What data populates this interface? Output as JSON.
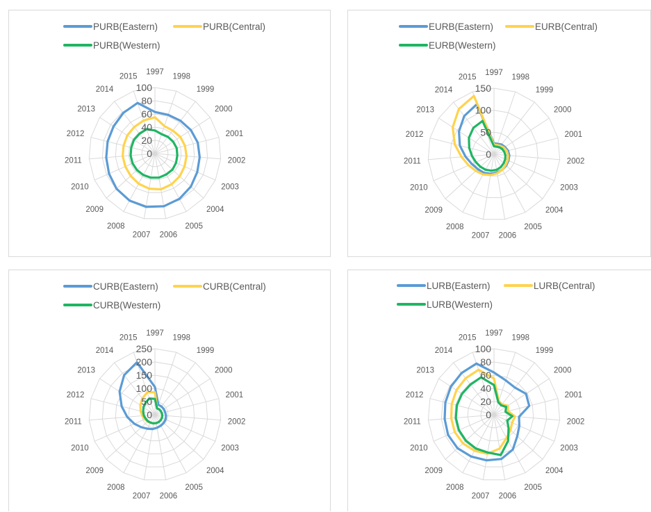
{
  "chart_data": [
    {
      "type": "radar",
      "categories": [
        "1997",
        "1998",
        "1999",
        "2000",
        "2001",
        "2002",
        "2003",
        "2004",
        "2005",
        "2006",
        "2007",
        "2008",
        "2009",
        "2010",
        "2011",
        "2012",
        "2013",
        "2014",
        "2015"
      ],
      "rticks": [
        "0",
        "20",
        "40",
        "60",
        "80",
        "100"
      ],
      "rmax": 100,
      "grid": true,
      "legend": "top",
      "series": [
        {
          "name": "PURB(Eastern)",
          "color": "#5b9bd5",
          "values": [
            63,
            62,
            63,
            65,
            67,
            68,
            70,
            74,
            78,
            81,
            82,
            81,
            79,
            76,
            74,
            74,
            75,
            78,
            81
          ]
        },
        {
          "name": "PURB(Central)",
          "color": "#ffd34d",
          "values": [
            55,
            44,
            44,
            46,
            47,
            48,
            49,
            51,
            53,
            55,
            54,
            52,
            50,
            49,
            49,
            49,
            50,
            51,
            53
          ]
        },
        {
          "name": "PURB(Western)",
          "color": "#1fb563",
          "values": [
            35,
            31,
            32,
            33,
            34,
            34,
            35,
            36,
            36,
            37,
            37,
            37,
            37,
            37,
            37,
            37,
            38,
            38,
            39
          ]
        }
      ]
    },
    {
      "type": "radar",
      "categories": [
        "1997",
        "1998",
        "1999",
        "2000",
        "2001",
        "2002",
        "2003",
        "2004",
        "2005",
        "2006",
        "2007",
        "2008",
        "2009",
        "2010",
        "2011",
        "2012",
        "2013",
        "2014",
        "2015"
      ],
      "rticks": [
        "0",
        "50",
        "100",
        "150"
      ],
      "rmax": 150,
      "grid": true,
      "legend": "top",
      "series": [
        {
          "name": "EURB(Eastern)",
          "color": "#5b9bd5",
          "values": [
            25,
            25,
            28,
            30,
            33,
            35,
            36,
            38,
            40,
            42,
            45,
            48,
            50,
            55,
            65,
            80,
            95,
            110,
            120
          ]
        },
        {
          "name": "EURB(Central)",
          "color": "#ffd34d",
          "values": [
            22,
            22,
            24,
            27,
            30,
            32,
            34,
            36,
            40,
            44,
            48,
            52,
            56,
            63,
            74,
            92,
            112,
            130,
            140
          ]
        },
        {
          "name": "EURB(Western)",
          "color": "#1fb563",
          "values": [
            18,
            18,
            20,
            22,
            24,
            26,
            28,
            30,
            33,
            36,
            38,
            40,
            42,
            45,
            50,
            58,
            68,
            76,
            80
          ]
        }
      ]
    },
    {
      "type": "radar",
      "categories": [
        "1997",
        "1998",
        "1999",
        "2000",
        "2001",
        "2002",
        "2003",
        "2004",
        "2005",
        "2006",
        "2007",
        "2008",
        "2009",
        "2010",
        "2011",
        "2012",
        "2013",
        "2014",
        "2015"
      ],
      "rticks": [
        "0",
        "50",
        "100",
        "150",
        "200",
        "250"
      ],
      "rmax": 250,
      "grid": true,
      "legend": "top",
      "series": [
        {
          "name": "CURB(Eastern)",
          "color": "#5b9bd5",
          "values": [
            105,
            40,
            40,
            40,
            40,
            42,
            44,
            45,
            47,
            50,
            55,
            60,
            70,
            85,
            105,
            130,
            160,
            190,
            210
          ]
        },
        {
          "name": "CURB(Central)",
          "color": "#ffd34d",
          "values": [
            85,
            25,
            26,
            26,
            27,
            28,
            29,
            30,
            31,
            32,
            33,
            35,
            38,
            42,
            48,
            56,
            66,
            78,
            90
          ]
        },
        {
          "name": "CURB(Western)",
          "color": "#1fb563",
          "values": [
            60,
            25,
            26,
            26,
            27,
            28,
            29,
            30,
            31,
            32,
            33,
            34,
            36,
            38,
            42,
            46,
            52,
            58,
            65
          ]
        }
      ]
    },
    {
      "type": "radar",
      "categories": [
        "1997",
        "1998",
        "1999",
        "2000",
        "2001",
        "2002",
        "2003",
        "2004",
        "2005",
        "2006",
        "2007",
        "2008",
        "2009",
        "2010",
        "2011",
        "2012",
        "2013",
        "2014",
        "2015"
      ],
      "rticks": [
        "0",
        "20",
        "40",
        "60",
        "80",
        "100"
      ],
      "rmax": 100,
      "grid": true,
      "legend": "top",
      "series": [
        {
          "name": "LURB(Eastern)",
          "color": "#5b9bd5",
          "values": [
            64,
            55,
            52,
            58,
            55,
            38,
            42,
            48,
            60,
            68,
            70,
            72,
            75,
            76,
            75,
            76,
            78,
            80,
            82
          ]
        },
        {
          "name": "LURB(Central)",
          "color": "#ffd34d",
          "values": [
            55,
            22,
            20,
            25,
            22,
            32,
            30,
            34,
            40,
            52,
            60,
            62,
            64,
            65,
            65,
            66,
            68,
            70,
            72
          ]
        },
        {
          "name": "LURB(Western)",
          "color": "#1fb563",
          "values": [
            45,
            20,
            18,
            22,
            18,
            28,
            22,
            30,
            45,
            62,
            58,
            58,
            58,
            58,
            58,
            58,
            58,
            58,
            60
          ]
        }
      ]
    }
  ]
}
